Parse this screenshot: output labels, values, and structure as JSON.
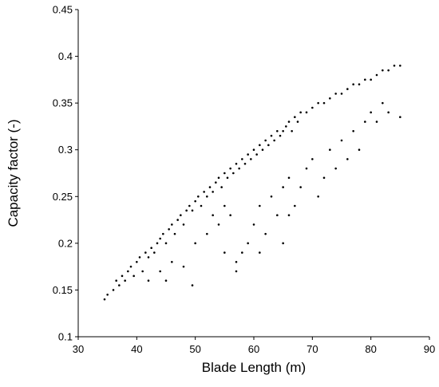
{
  "chart_data": {
    "type": "scatter",
    "x_label": "Blade Length (m)",
    "y_label": "Capacity factor (-)",
    "xlim": [
      30,
      90
    ],
    "xticks": [
      30,
      40,
      50,
      60,
      70,
      80,
      90
    ],
    "ylim": [
      0.1,
      0.45
    ],
    "yticks": [
      0.1,
      0.15,
      0.2,
      0.25,
      0.3,
      0.35,
      0.4,
      0.45
    ],
    "grid": false,
    "series": [
      {
        "color": "#000000",
        "x": [
          34.5,
          35,
          36,
          36.5,
          37,
          37.5,
          38,
          38.5,
          39,
          39.5,
          40,
          40.5,
          41,
          41.5,
          42,
          42.5,
          43,
          43.5,
          44,
          44.5,
          45,
          45.5,
          46,
          46.5,
          47,
          47.5,
          48,
          48.5,
          49,
          49.5,
          50,
          50.5,
          51,
          51.5,
          52,
          52.5,
          53,
          53.5,
          54,
          54.5,
          55,
          55.5,
          56,
          56.5,
          57,
          57.5,
          58,
          58.5,
          59,
          59.5,
          60,
          60.5,
          61,
          61.5,
          62,
          62.5,
          63,
          63.5,
          64,
          64.5,
          65,
          65.5,
          66,
          66.5,
          67,
          67.5,
          68,
          69,
          70,
          71,
          72,
          73,
          74,
          75,
          76,
          77,
          78,
          79,
          80,
          81,
          82,
          83,
          84,
          85,
          42,
          44,
          46,
          48,
          49.5,
          50,
          52,
          54,
          55,
          56,
          57,
          58,
          59,
          60,
          61,
          62,
          63,
          64,
          65,
          66,
          67,
          68,
          69,
          70,
          71,
          72,
          73,
          74,
          75,
          76,
          77,
          78,
          79,
          80,
          81,
          82,
          83,
          85,
          66,
          65,
          57,
          61,
          45,
          53,
          55
        ],
        "values": [
          0.14,
          0.145,
          0.15,
          0.16,
          0.155,
          0.165,
          0.16,
          0.17,
          0.175,
          0.165,
          0.18,
          0.185,
          0.17,
          0.19,
          0.185,
          0.195,
          0.19,
          0.2,
          0.205,
          0.21,
          0.2,
          0.215,
          0.22,
          0.21,
          0.225,
          0.23,
          0.22,
          0.235,
          0.24,
          0.235,
          0.245,
          0.25,
          0.24,
          0.255,
          0.25,
          0.26,
          0.255,
          0.265,
          0.27,
          0.26,
          0.275,
          0.27,
          0.28,
          0.275,
          0.285,
          0.28,
          0.29,
          0.285,
          0.295,
          0.29,
          0.3,
          0.295,
          0.305,
          0.3,
          0.31,
          0.305,
          0.315,
          0.31,
          0.32,
          0.315,
          0.32,
          0.325,
          0.33,
          0.32,
          0.335,
          0.33,
          0.34,
          0.34,
          0.345,
          0.35,
          0.35,
          0.355,
          0.36,
          0.36,
          0.365,
          0.37,
          0.37,
          0.375,
          0.375,
          0.38,
          0.385,
          0.385,
          0.39,
          0.39,
          0.16,
          0.17,
          0.18,
          0.175,
          0.155,
          0.2,
          0.21,
          0.22,
          0.19,
          0.23,
          0.18,
          0.19,
          0.2,
          0.22,
          0.24,
          0.21,
          0.25,
          0.23,
          0.26,
          0.27,
          0.24,
          0.26,
          0.28,
          0.29,
          0.25,
          0.27,
          0.3,
          0.28,
          0.31,
          0.29,
          0.32,
          0.3,
          0.33,
          0.34,
          0.33,
          0.35,
          0.34,
          0.335,
          0.23,
          0.2,
          0.17,
          0.19,
          0.16,
          0.23,
          0.24
        ]
      }
    ]
  }
}
